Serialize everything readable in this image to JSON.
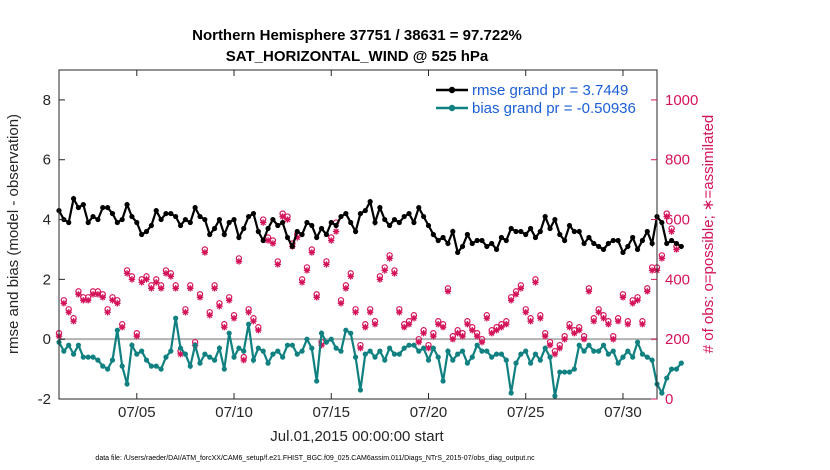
{
  "chart_data": {
    "type": "line",
    "title": "Northern Hemisphere 37751 / 38631 = 97.722%",
    "subtitle": "SAT_HORIZONTAL_WIND @ 525 hPa",
    "xlabel": "Jul.01,2015 00:00:00 start",
    "ylabel": "rmse and bias (model - observation)",
    "y2label": "# of obs: o=possible; ∗=assimilated",
    "footer": "data file: /Users/raeder/DAI/ATM_forcXX/CAM6_setup/f.e21.FHIST_BGC.f09_025.CAM6assim.011/Diags_NTrS_2015-07/obs_diag_output.nc",
    "x_ticks": [
      {
        "day": 5,
        "label": "07/05"
      },
      {
        "day": 10,
        "label": "07/10"
      },
      {
        "day": 15,
        "label": "07/15"
      },
      {
        "day": 20,
        "label": "07/20"
      },
      {
        "day": 25,
        "label": "07/25"
      },
      {
        "day": 30,
        "label": "07/30"
      }
    ],
    "xlim": [
      1,
      31.75
    ],
    "ylim": [
      -2,
      9
    ],
    "y2lim": [
      0,
      1100
    ],
    "y_ticks": [
      -2,
      0,
      2,
      4,
      6,
      8
    ],
    "y2_ticks": [
      0,
      200,
      400,
      600,
      800,
      1000
    ],
    "grid": false,
    "legend_position": "top-right",
    "colors": {
      "rmse": "#000000",
      "bias": "#108080",
      "obs": "#d4145a",
      "zero_line": "#b3b3b3"
    },
    "legend": {
      "rmse": "rmse grand pr = 3.7449",
      "bias": "bias grand pr = -0.50936"
    },
    "start_day": 1,
    "step_days": 0.25,
    "rmse": [
      4.3,
      4.0,
      3.9,
      4.7,
      4.4,
      4.5,
      3.9,
      4.1,
      4.0,
      4.4,
      4.4,
      4.2,
      3.9,
      4.0,
      4.5,
      4.1,
      3.9,
      3.5,
      3.6,
      3.8,
      4.3,
      4.0,
      4.2,
      4.2,
      4.1,
      3.8,
      4.0,
      3.9,
      4.4,
      4.1,
      4.0,
      3.5,
      3.7,
      4.0,
      3.5,
      3.9,
      4.0,
      3.4,
      3.7,
      4.1,
      4.2,
      3.6,
      3.3,
      3.7,
      4.0,
      3.8,
      3.9,
      3.4,
      3.1,
      3.6,
      3.5,
      3.9,
      3.8,
      3.4,
      3.7,
      3.5,
      3.9,
      3.8,
      4.1,
      4.2,
      3.9,
      3.6,
      4.2,
      4.3,
      4.6,
      3.9,
      4.4,
      4.0,
      3.8,
      4.0,
      3.9,
      4.1,
      4.2,
      3.9,
      4.4,
      4.1,
      3.8,
      3.5,
      3.3,
      3.4,
      3.2,
      3.6,
      2.9,
      3.1,
      3.5,
      3.2,
      3.3,
      3.3,
      3.1,
      3.2,
      3.0,
      3.4,
      3.3,
      3.7,
      3.6,
      3.6,
      3.5,
      3.7,
      3.4,
      3.6,
      4.1,
      3.7,
      4.0,
      3.5,
      3.3,
      3.8,
      3.6,
      3.6,
      3.2,
      3.4,
      3.2,
      3.1,
      3.0,
      3.2,
      3.3,
      3.3,
      2.9,
      3.1,
      3.4,
      3.0,
      3.3,
      3.6,
      3.2,
      4.1,
      3.9,
      3.2,
      3.3,
      3.2,
      3.1
    ],
    "bias": [
      -0.1,
      -0.4,
      -0.2,
      -0.5,
      -0.2,
      -0.6,
      -0.6,
      -0.6,
      -0.7,
      -0.9,
      -1.0,
      -0.7,
      0.3,
      -0.9,
      -1.5,
      -0.2,
      -0.5,
      -0.4,
      -0.7,
      -0.9,
      -0.9,
      -1.0,
      -0.6,
      -0.4,
      0.7,
      -0.3,
      -0.5,
      -0.9,
      -0.2,
      -0.8,
      -0.5,
      -0.6,
      -0.7,
      -0.3,
      -1.0,
      0.2,
      -0.6,
      -0.3,
      -0.4,
      0.5,
      -0.7,
      -0.3,
      -0.4,
      -0.8,
      -0.5,
      -0.4,
      -0.6,
      -0.2,
      -0.2,
      -0.5,
      -0.4,
      0.0,
      -0.3,
      -1.4,
      0.2,
      -0.1,
      0.0,
      -0.3,
      -0.4,
      0.3,
      0.2,
      -0.6,
      -1.7,
      -0.5,
      -0.4,
      -0.6,
      -0.4,
      -0.7,
      -0.3,
      -0.5,
      -0.5,
      -0.3,
      -0.2,
      -0.2,
      -0.4,
      -0.3,
      -0.7,
      -0.3,
      -0.6,
      -1.4,
      -0.4,
      -0.7,
      -0.5,
      -0.4,
      -0.8,
      -0.6,
      -0.2,
      -0.4,
      -0.4,
      -0.6,
      -0.5,
      -0.5,
      -0.7,
      -1.8,
      -0.8,
      -0.5,
      -0.4,
      -0.8,
      -0.5,
      -0.7,
      -0.3,
      -0.6,
      -1.9,
      -1.1,
      -1.1,
      -1.1,
      -1.0,
      -0.2,
      -0.4,
      -0.2,
      -0.4,
      -0.4,
      -0.2,
      -0.5,
      -0.4,
      -0.8,
      -0.6,
      -0.4,
      -0.6,
      -0.1,
      -0.5,
      -0.6,
      -0.7,
      -1.5,
      -1.8,
      -1.3,
      -1.0,
      -1.0,
      -0.8
    ],
    "obs_possible": [
      220,
      330,
      300,
      270,
      360,
      340,
      340,
      360,
      360,
      350,
      300,
      340,
      330,
      250,
      430,
      410,
      220,
      400,
      410,
      380,
      400,
      380,
      430,
      420,
      380,
      160,
      300,
      380,
      190,
      350,
      500,
      290,
      380,
      320,
      250,
      340,
      280,
      470,
      140,
      300,
      270,
      240,
      600,
      540,
      530,
      460,
      620,
      610,
      520,
      550,
      400,
      440,
      500,
      350,
      190,
      460,
      540,
      590,
      330,
      380,
      420,
      300,
      180,
      250,
      300,
      260,
      410,
      440,
      480,
      430,
      300,
      250,
      260,
      280,
      200,
      230,
      180,
      220,
      260,
      250,
      370,
      210,
      230,
      220,
      260,
      240,
      220,
      200,
      280,
      230,
      240,
      250,
      260,
      340,
      360,
      380,
      300,
      270,
      400,
      280,
      220,
      190,
      160,
      180,
      210,
      250,
      230,
      240,
      210,
      370,
      270,
      300,
      280,
      260,
      210,
      270,
      350,
      260,
      330,
      340,
      260,
      370,
      440,
      440,
      480,
      620,
      570,
      510
    ],
    "obs_assimilated": [
      210,
      320,
      290,
      260,
      350,
      330,
      330,
      350,
      350,
      340,
      290,
      330,
      320,
      240,
      420,
      400,
      210,
      390,
      400,
      370,
      390,
      370,
      420,
      410,
      370,
      150,
      290,
      370,
      180,
      340,
      490,
      280,
      370,
      310,
      240,
      330,
      270,
      460,
      130,
      290,
      260,
      230,
      590,
      530,
      520,
      450,
      610,
      600,
      510,
      540,
      390,
      430,
      490,
      340,
      180,
      450,
      530,
      560,
      320,
      370,
      410,
      290,
      170,
      240,
      290,
      250,
      400,
      430,
      470,
      420,
      290,
      240,
      250,
      270,
      190,
      220,
      170,
      210,
      250,
      240,
      360,
      200,
      220,
      210,
      250,
      230,
      210,
      190,
      270,
      220,
      230,
      240,
      250,
      330,
      350,
      370,
      290,
      260,
      390,
      270,
      210,
      180,
      150,
      170,
      200,
      240,
      220,
      230,
      200,
      360,
      260,
      290,
      270,
      250,
      200,
      260,
      340,
      250,
      320,
      330,
      250,
      360,
      430,
      430,
      470,
      610,
      560,
      500
    ]
  }
}
